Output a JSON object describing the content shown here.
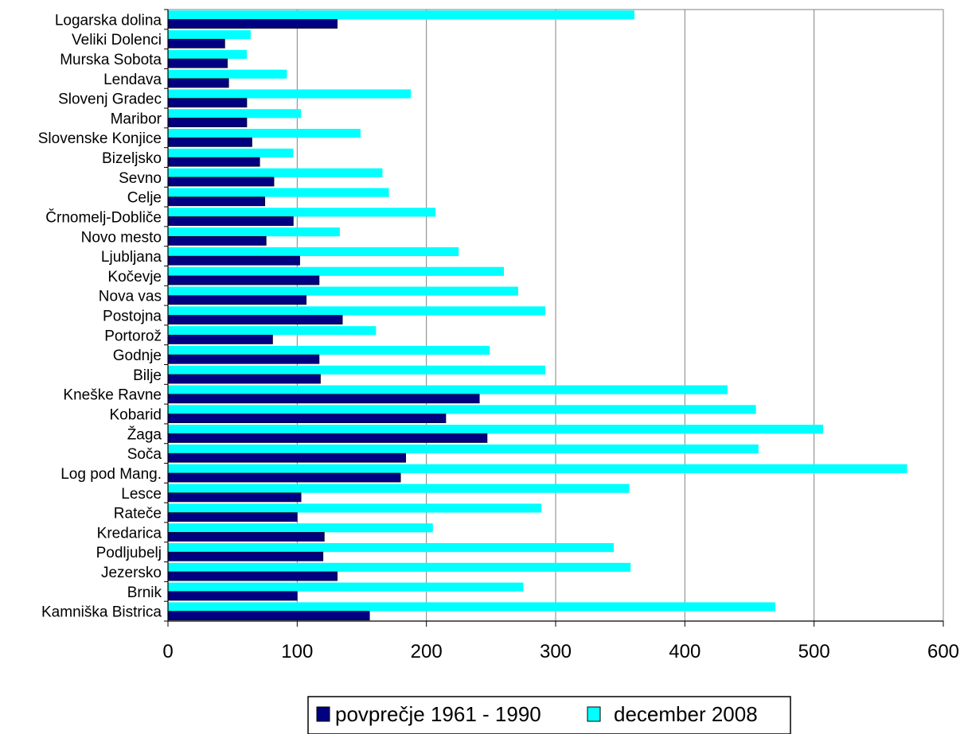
{
  "chart_data": {
    "type": "bar",
    "orientation": "horizontal",
    "categories": [
      "Logarska dolina",
      "Veliki Dolenci",
      "Murska Sobota",
      "Lendava",
      "Slovenj Gradec",
      "Maribor",
      "Slovenske Konjice",
      "Bizeljsko",
      "Sevno",
      "Celje",
      "Črnomelj-Dobliče",
      "Novo mesto",
      "Ljubljana",
      "Kočevje",
      "Nova vas",
      "Postojna",
      "Portorož",
      "Godnje",
      "Bilje",
      "Kneške Ravne",
      "Kobarid",
      "Žaga",
      "Soča",
      "Log pod Mang.",
      "Lesce",
      "Rateče",
      "Kredarica",
      "Podljubelj",
      "Jezersko",
      "Brnik",
      "Kamniška Bistrica"
    ],
    "series": [
      {
        "name": "povprečje 1961 - 1990",
        "color": "#000080",
        "values": [
          131,
          44,
          46,
          47,
          61,
          61,
          65,
          71,
          82,
          75,
          97,
          76,
          102,
          117,
          107,
          135,
          81,
          117,
          118,
          241,
          215,
          247,
          184,
          180,
          103,
          100,
          121,
          120,
          131,
          100,
          156
        ]
      },
      {
        "name": "december 2008",
        "color": "#00FFFF",
        "values": [
          361,
          64,
          61,
          92,
          188,
          103,
          149,
          97,
          166,
          171,
          207,
          133,
          225,
          260,
          271,
          292,
          161,
          249,
          292,
          433,
          455,
          507,
          457,
          572,
          357,
          289,
          205,
          345,
          358,
          275,
          470
        ]
      }
    ],
    "xlim": [
      0,
      600
    ],
    "xticks": [
      "0",
      "100",
      "200",
      "300",
      "400",
      "500",
      "600"
    ],
    "grid": true,
    "legend_position": "bottom"
  }
}
